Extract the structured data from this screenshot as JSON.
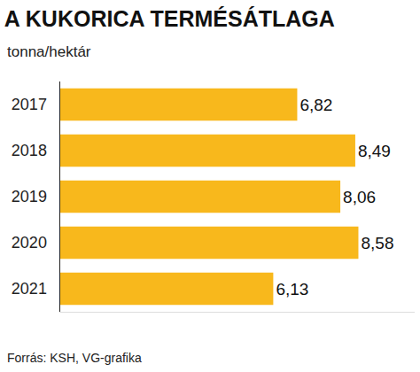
{
  "chart_data": {
    "type": "bar",
    "title": "A KUKORICA TERMÉSÁTLAGA",
    "subtitle": "tonna/hektár",
    "source": "Forrás: KSH, VG-grafika",
    "orientation": "horizontal",
    "categories": [
      "2017",
      "2018",
      "2019",
      "2020",
      "2021"
    ],
    "values": [
      6.82,
      8.49,
      8.06,
      8.58,
      6.13
    ],
    "value_labels": [
      "6,82",
      "8,49",
      "8,06",
      "8,58",
      "6,13"
    ],
    "data_labels": true,
    "color": "#f8b81c",
    "xlim": [
      0,
      10.2
    ],
    "tick_labels": "y",
    "grid": false
  }
}
